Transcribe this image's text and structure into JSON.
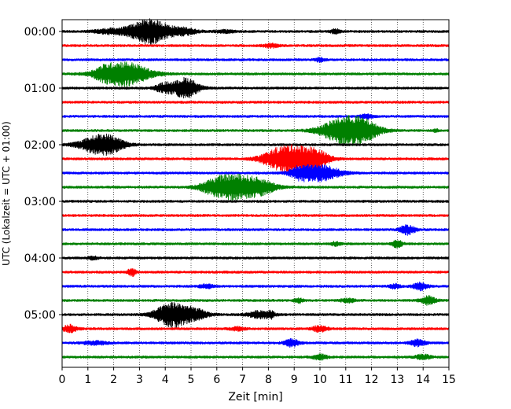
{
  "chart_data": {
    "type": "line",
    "title": "",
    "xlabel": "Zeit  [min]",
    "ylabel": "UTC (Lokalzeit = UTC + 01:00)",
    "xlim": [
      0,
      15
    ],
    "x_ticks": [
      0,
      1,
      2,
      3,
      4,
      5,
      6,
      7,
      8,
      9,
      10,
      11,
      12,
      13,
      14,
      15
    ],
    "y_tick_labels": [
      "00:00",
      "01:00",
      "02:00",
      "03:00",
      "04:00",
      "05:00"
    ],
    "grid_x": true,
    "grid_style": "dotted",
    "trace_interval_min": 15,
    "trace_colors": [
      "#000000",
      "#ff0000",
      "#0000ff",
      "#008000"
    ],
    "traces": [
      {
        "start": "00:00",
        "color": "#000000",
        "events": [
          {
            "t": 3.4,
            "amp": 1.0,
            "w": 0.9
          },
          {
            "t": 1.8,
            "amp": 0.18,
            "w": 0.6
          },
          {
            "t": 4.8,
            "amp": 0.22,
            "w": 0.5
          },
          {
            "t": 6.3,
            "amp": 0.1,
            "w": 0.4
          },
          {
            "t": 10.6,
            "amp": 0.18,
            "w": 0.2
          }
        ]
      },
      {
        "start": "00:15",
        "color": "#ff0000",
        "events": [
          {
            "t": 8.1,
            "amp": 0.15,
            "w": 0.3
          }
        ]
      },
      {
        "start": "00:30",
        "color": "#0000ff",
        "events": [
          {
            "t": 10.0,
            "amp": 0.15,
            "w": 0.2
          }
        ]
      },
      {
        "start": "00:45",
        "color": "#008000",
        "events": [
          {
            "t": 2.4,
            "amp": 1.0,
            "w": 1.0
          },
          {
            "t": 1.6,
            "amp": 0.25,
            "w": 0.4
          }
        ]
      },
      {
        "start": "01:00",
        "color": "#000000",
        "events": [
          {
            "t": 4.8,
            "amp": 0.85,
            "w": 0.5
          },
          {
            "t": 4.1,
            "amp": 0.3,
            "w": 0.3
          },
          {
            "t": 3.8,
            "amp": 0.2,
            "w": 0.3
          }
        ]
      },
      {
        "start": "01:15",
        "color": "#ff0000",
        "events": []
      },
      {
        "start": "01:30",
        "color": "#0000ff",
        "events": [
          {
            "t": 11.8,
            "amp": 0.15,
            "w": 0.3
          }
        ]
      },
      {
        "start": "01:45",
        "color": "#008000",
        "events": [
          {
            "t": 10.9,
            "amp": 1.0,
            "w": 0.9
          },
          {
            "t": 11.7,
            "amp": 0.6,
            "w": 0.7
          },
          {
            "t": 14.5,
            "amp": 0.12,
            "w": 0.1
          }
        ]
      },
      {
        "start": "02:00",
        "color": "#000000",
        "events": [
          {
            "t": 1.4,
            "amp": 0.65,
            "w": 0.8
          },
          {
            "t": 1.9,
            "amp": 0.35,
            "w": 0.6
          }
        ]
      },
      {
        "start": "02:15",
        "color": "#ff0000",
        "events": [
          {
            "t": 9.1,
            "amp": 1.0,
            "w": 0.9
          },
          {
            "t": 8.3,
            "amp": 0.45,
            "w": 0.7
          },
          {
            "t": 9.9,
            "amp": 0.4,
            "w": 0.5
          }
        ]
      },
      {
        "start": "02:30",
        "color": "#0000ff",
        "events": [
          {
            "t": 10.0,
            "amp": 0.65,
            "w": 0.8
          },
          {
            "t": 9.2,
            "amp": 0.4,
            "w": 0.4
          }
        ]
      },
      {
        "start": "02:45",
        "color": "#008000",
        "events": [
          {
            "t": 6.8,
            "amp": 1.0,
            "w": 1.0
          },
          {
            "t": 5.9,
            "amp": 0.35,
            "w": 0.6
          },
          {
            "t": 7.8,
            "amp": 0.3,
            "w": 0.6
          }
        ]
      },
      {
        "start": "03:00",
        "color": "#000000",
        "events": []
      },
      {
        "start": "03:15",
        "color": "#ff0000",
        "events": []
      },
      {
        "start": "03:30",
        "color": "#0000ff",
        "events": [
          {
            "t": 13.4,
            "amp": 0.4,
            "w": 0.3
          }
        ]
      },
      {
        "start": "03:45",
        "color": "#008000",
        "events": [
          {
            "t": 13.0,
            "amp": 0.3,
            "w": 0.2
          },
          {
            "t": 10.6,
            "amp": 0.15,
            "w": 0.2
          }
        ]
      },
      {
        "start": "04:00",
        "color": "#000000",
        "events": [
          {
            "t": 1.2,
            "amp": 0.12,
            "w": 0.2
          }
        ]
      },
      {
        "start": "04:15",
        "color": "#ff0000",
        "events": [
          {
            "t": 2.7,
            "amp": 0.35,
            "w": 0.15
          }
        ]
      },
      {
        "start": "04:30",
        "color": "#0000ff",
        "events": [
          {
            "t": 13.9,
            "amp": 0.3,
            "w": 0.3
          },
          {
            "t": 12.9,
            "amp": 0.2,
            "w": 0.2
          },
          {
            "t": 5.6,
            "amp": 0.15,
            "w": 0.3
          }
        ]
      },
      {
        "start": "04:45",
        "color": "#008000",
        "events": [
          {
            "t": 14.2,
            "amp": 0.35,
            "w": 0.3
          },
          {
            "t": 9.2,
            "amp": 0.2,
            "w": 0.2
          },
          {
            "t": 11.1,
            "amp": 0.15,
            "w": 0.3
          }
        ]
      },
      {
        "start": "05:00",
        "color": "#000000",
        "events": [
          {
            "t": 4.3,
            "amp": 1.0,
            "w": 0.7
          },
          {
            "t": 5.2,
            "amp": 0.35,
            "w": 0.5
          },
          {
            "t": 7.7,
            "amp": 0.3,
            "w": 0.5
          },
          {
            "t": 8.1,
            "amp": 0.25,
            "w": 0.1
          }
        ]
      },
      {
        "start": "05:15",
        "color": "#ff0000",
        "events": [
          {
            "t": 0.3,
            "amp": 0.3,
            "w": 0.3
          },
          {
            "t": 10.0,
            "amp": 0.25,
            "w": 0.3
          },
          {
            "t": 6.8,
            "amp": 0.15,
            "w": 0.3
          }
        ]
      },
      {
        "start": "05:30",
        "color": "#0000ff",
        "events": [
          {
            "t": 8.9,
            "amp": 0.3,
            "w": 0.3
          },
          {
            "t": 13.8,
            "amp": 0.3,
            "w": 0.3
          },
          {
            "t": 1.3,
            "amp": 0.15,
            "w": 0.5
          }
        ]
      },
      {
        "start": "05:45",
        "color": "#008000",
        "events": [
          {
            "t": 10.0,
            "amp": 0.2,
            "w": 0.3
          },
          {
            "t": 14.0,
            "amp": 0.2,
            "w": 0.3
          }
        ]
      }
    ]
  }
}
